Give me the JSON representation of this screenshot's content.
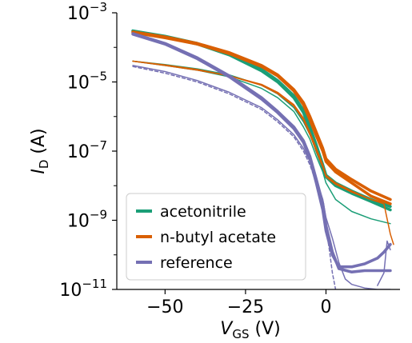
{
  "chart_data": {
    "type": "line",
    "xlabel": {
      "main": "V",
      "sub": "GS",
      "unit": " (V)"
    },
    "ylabel": {
      "main": "I",
      "sub": "D",
      "unit": " (A)"
    },
    "xlim": [
      -65,
      23
    ],
    "ylim": [
      1e-11,
      0.001
    ],
    "yscale": "log",
    "x_ticks": [
      -50,
      -25,
      0
    ],
    "x_tick_labels": [
      "−50",
      "−25",
      "0"
    ],
    "y_ticks": [
      0.001,
      1e-05,
      1e-07,
      1e-09,
      1e-11
    ],
    "y_tick_labels": [
      {
        "base": "10",
        "exp": "−3"
      },
      {
        "base": "10",
        "exp": "−5"
      },
      {
        "base": "10",
        "exp": "−7"
      },
      {
        "base": "10",
        "exp": "−9"
      },
      {
        "base": "10",
        "exp": "−11"
      }
    ],
    "legend_position": "lower-left",
    "series": [
      {
        "name": "acetonitrile",
        "color": "#1b9e77",
        "curves": [
          {
            "style": "thick",
            "points": [
              [
                -60,
                0.0003
              ],
              [
                -50,
                0.00021
              ],
              [
                -40,
                0.00013
              ],
              [
                -30,
                6.5e-05
              ],
              [
                -20,
                2.3e-05
              ],
              [
                -15,
                1.1e-05
              ],
              [
                -10,
                4e-06
              ],
              [
                -7,
                1.5e-06
              ],
              [
                -5,
                5e-07
              ],
              [
                -3,
                1.5e-07
              ],
              [
                -1,
                4e-08
              ],
              [
                0,
                2e-08
              ],
              [
                3,
                1.2e-08
              ],
              [
                8,
                7e-09
              ],
              [
                14,
                4e-09
              ],
              [
                20,
                2.5e-09
              ]
            ]
          },
          {
            "style": "thick",
            "points": [
              [
                -60,
                0.0003
              ],
              [
                -50,
                0.0002
              ],
              [
                -40,
                0.000125
              ],
              [
                -30,
                6e-05
              ],
              [
                -20,
                2.1e-05
              ],
              [
                -15,
                1e-05
              ],
              [
                -10,
                3.5e-06
              ],
              [
                -7,
                1.3e-06
              ],
              [
                -5,
                4e-07
              ],
              [
                -3,
                1.1e-07
              ],
              [
                -1,
                3.5e-08
              ],
              [
                0,
                1.8e-08
              ],
              [
                3,
                1e-08
              ],
              [
                8,
                6e-09
              ],
              [
                14,
                3.5e-09
              ],
              [
                20,
                2e-09
              ]
            ]
          },
          {
            "style": "thin",
            "points": [
              [
                -60,
                4e-05
              ],
              [
                -50,
                3.2e-05
              ],
              [
                -40,
                2.4e-05
              ],
              [
                -30,
                1.6e-05
              ],
              [
                -20,
                8e-06
              ],
              [
                -15,
                4.5e-06
              ],
              [
                -10,
                1.8e-06
              ],
              [
                -7,
                7e-07
              ],
              [
                -5,
                3e-07
              ],
              [
                -3,
                1e-07
              ],
              [
                -1,
                3.5e-08
              ],
              [
                0,
                1.8e-08
              ],
              [
                3,
                1e-08
              ],
              [
                8,
                6.5e-09
              ],
              [
                14,
                4e-09
              ],
              [
                20,
                2.5e-09
              ]
            ]
          },
          {
            "style": "thin",
            "points": [
              [
                -60,
                4e-05
              ],
              [
                -50,
                3e-05
              ],
              [
                -40,
                2.2e-05
              ],
              [
                -30,
                1.4e-05
              ],
              [
                -20,
                6.5e-06
              ],
              [
                -15,
                3.5e-06
              ],
              [
                -10,
                1.4e-06
              ],
              [
                -7,
                5e-07
              ],
              [
                -5,
                2.2e-07
              ],
              [
                -3,
                7e-08
              ],
              [
                -1,
                2.5e-08
              ],
              [
                0,
                1.2e-08
              ],
              [
                3,
                4e-09
              ],
              [
                8,
                1.8e-09
              ],
              [
                14,
                1.1e-09
              ],
              [
                20,
                8e-10
              ]
            ]
          }
        ]
      },
      {
        "name": "n-butyl acetate",
        "color": "#d95f02",
        "curves": [
          {
            "style": "thick",
            "points": [
              [
                -60,
                0.00028
              ],
              [
                -50,
                0.0002
              ],
              [
                -40,
                0.00013
              ],
              [
                -30,
                7e-05
              ],
              [
                -20,
                3e-05
              ],
              [
                -15,
                1.6e-05
              ],
              [
                -10,
                6e-06
              ],
              [
                -7,
                2.5e-06
              ],
              [
                -5,
                1e-06
              ],
              [
                -3,
                3.5e-07
              ],
              [
                -1,
                1.2e-07
              ],
              [
                0,
                6e-08
              ],
              [
                3,
                3e-08
              ],
              [
                8,
                1.5e-08
              ],
              [
                14,
                7e-09
              ],
              [
                20,
                4e-09
              ]
            ]
          },
          {
            "style": "thick",
            "points": [
              [
                -60,
                0.00027
              ],
              [
                -50,
                0.00019
              ],
              [
                -40,
                0.000125
              ],
              [
                -30,
                6.6e-05
              ],
              [
                -20,
                2.8e-05
              ],
              [
                -15,
                1.5e-05
              ],
              [
                -10,
                5.5e-06
              ],
              [
                -7,
                2.2e-06
              ],
              [
                -5,
                8e-07
              ],
              [
                -3,
                2.8e-07
              ],
              [
                -1,
                1e-07
              ],
              [
                0,
                5e-08
              ],
              [
                3,
                2.5e-08
              ],
              [
                8,
                1.2e-08
              ],
              [
                14,
                5e-09
              ],
              [
                20,
                3e-09
              ]
            ]
          },
          {
            "style": "thin",
            "points": [
              [
                -60,
                4e-05
              ],
              [
                -50,
                3e-05
              ],
              [
                -40,
                2.2e-05
              ],
              [
                -30,
                1.5e-05
              ],
              [
                -20,
                8.5e-06
              ],
              [
                -15,
                5e-06
              ],
              [
                -10,
                2.2e-06
              ],
              [
                -7,
                9e-07
              ],
              [
                -5,
                3.5e-07
              ],
              [
                -3,
                1.2e-07
              ],
              [
                -1,
                4e-08
              ],
              [
                0,
                2e-08
              ],
              [
                3,
                1.2e-08
              ],
              [
                8,
                7e-09
              ],
              [
                14,
                4e-09
              ],
              [
                20,
                3e-09
              ]
            ]
          },
          {
            "style": "thin",
            "points": [
              [
                -60,
                4e-05
              ],
              [
                -50,
                3.1e-05
              ],
              [
                -40,
                2.3e-05
              ],
              [
                -30,
                1.5e-05
              ],
              [
                -20,
                8e-06
              ],
              [
                -15,
                4.6e-06
              ],
              [
                -10,
                2e-06
              ],
              [
                -7,
                8e-07
              ],
              [
                -5,
                3e-07
              ],
              [
                -3,
                1e-07
              ],
              [
                -1,
                3.5e-08
              ],
              [
                0,
                1.8e-08
              ],
              [
                3,
                1.1e-08
              ],
              [
                8,
                6.5e-09
              ],
              [
                14,
                4e-09
              ],
              [
                18,
                3e-09
              ],
              [
                20,
                4e-10
              ],
              [
                21,
                2e-10
              ]
            ]
          }
        ]
      },
      {
        "name": "reference",
        "color": "#7570b3",
        "curves": [
          {
            "style": "thick",
            "points": [
              [
                -60,
                0.00025
              ],
              [
                -50,
                0.00013
              ],
              [
                -40,
                5e-05
              ],
              [
                -30,
                1.5e-05
              ],
              [
                -20,
                3.5e-06
              ],
              [
                -15,
                1.4e-06
              ],
              [
                -10,
                5e-07
              ],
              [
                -7,
                2e-07
              ],
              [
                -5,
                7e-08
              ],
              [
                -3,
                1.5e-08
              ],
              [
                -1,
                3e-09
              ],
              [
                0,
                7e-10
              ],
              [
                2,
                1.2e-10
              ],
              [
                4,
                4e-11
              ],
              [
                8,
                3.2e-11
              ],
              [
                12,
                3.5e-11
              ],
              [
                16,
                3.5e-11
              ],
              [
                20,
                3.5e-11
              ]
            ]
          },
          {
            "style": "thick",
            "points": [
              [
                -60,
                0.00024
              ],
              [
                -50,
                0.000125
              ],
              [
                -40,
                4.7e-05
              ],
              [
                -30,
                1.4e-05
              ],
              [
                -20,
                3.2e-06
              ],
              [
                -15,
                1.3e-06
              ],
              [
                -10,
                4.5e-07
              ],
              [
                -7,
                1.8e-07
              ],
              [
                -5,
                6e-08
              ],
              [
                -3,
                1.2e-08
              ],
              [
                -1,
                2e-09
              ],
              [
                0,
                5e-10
              ],
              [
                2,
                1e-10
              ],
              [
                4,
                4.5e-11
              ],
              [
                8,
                4.5e-11
              ],
              [
                12,
                5.5e-11
              ],
              [
                16,
                8e-11
              ],
              [
                18,
                1.2e-10
              ],
              [
                20,
                2e-10
              ]
            ]
          },
          {
            "style": "thin",
            "points": [
              [
                -60,
                3e-05
              ],
              [
                -50,
                2e-05
              ],
              [
                -40,
                1.1e-05
              ],
              [
                -30,
                5e-06
              ],
              [
                -20,
                1.8e-06
              ],
              [
                -15,
                8e-07
              ],
              [
                -10,
                3e-07
              ],
              [
                -7,
                1.2e-07
              ],
              [
                -5,
                5e-08
              ],
              [
                -3,
                1.5e-08
              ],
              [
                -1,
                4e-09
              ],
              [
                0,
                1.2e-09
              ],
              [
                2,
                3e-10
              ],
              [
                4,
                6e-11
              ],
              [
                6,
                2e-11
              ],
              [
                8,
                1.4e-11
              ],
              [
                12,
                1.1e-11
              ],
              [
                16,
                1e-11
              ],
              [
                20,
                1e-11
              ]
            ]
          },
          {
            "style": "thin",
            "points": [
              [
                -60,
                2.8e-05
              ],
              [
                -50,
                1.8e-05
              ],
              [
                -40,
                1e-05
              ],
              [
                -30,
                4.5e-06
              ],
              [
                -20,
                1.6e-06
              ],
              [
                -15,
                7e-07
              ],
              [
                -10,
                2.6e-07
              ],
              [
                -7,
                1e-07
              ],
              [
                -5,
                4e-08
              ],
              [
                -3,
                1.2e-08
              ],
              [
                -1,
                3e-09
              ],
              [
                0,
                6e-10
              ],
              [
                1,
                1.5e-10
              ],
              [
                2,
                3e-11
              ],
              [
                3,
                1e-11
              ]
            ]
          },
          {
            "style": "thin",
            "points": [
              [
                16,
                1.3e-11
              ],
              [
                18,
                3e-11
              ],
              [
                19,
                2.5e-10
              ],
              [
                20,
                1.4e-10
              ]
            ]
          }
        ]
      }
    ]
  }
}
